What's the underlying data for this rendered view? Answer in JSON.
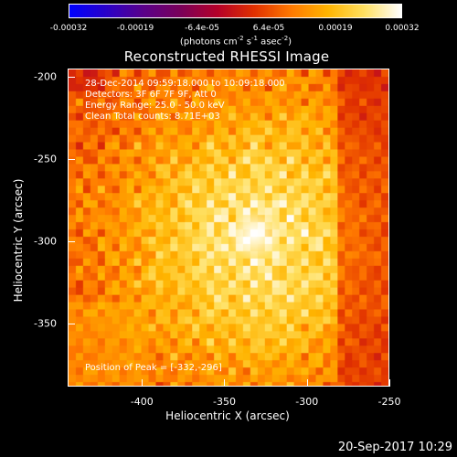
{
  "colorbar": {
    "ticks": [
      "-0.00032",
      "-0.00019",
      "-6.4e-05",
      "6.4e-05",
      "0.00019",
      "0.00032"
    ],
    "units_prefix": "(photons cm",
    "units_sup1": "-2",
    "units_mid": " s",
    "units_sup2": "-1",
    "units_mid2": " asec",
    "units_sup3": "-2",
    "units_suffix": ")",
    "colors": [
      "#0000ff",
      "#2a00c8",
      "#5a008a",
      "#7a005a",
      "#b4002a",
      "#e03000",
      "#ff7800",
      "#ffb400",
      "#ffe060",
      "#ffffff"
    ]
  },
  "plot": {
    "title": "Reconstructed RHESSI Image",
    "info_lines": [
      "28-Dec-2014 09:59:18.000 to 10:09:18.000",
      "Detectors: 3F 6F 7F 9F, Att 0",
      "Energy Range: 25.0 - 50.0 keV",
      "Clean     Total counts: 8.71E+03"
    ],
    "peak_text": "Position of Peak = [-332,-296]",
    "xlabel": "Heliocentric X (arcsec)",
    "ylabel": "Heliocentric Y (arcsec)",
    "xticks": [
      "-400",
      "-350",
      "-300",
      "-250"
    ],
    "yticks": [
      "-200",
      "-250",
      "-300",
      "-350"
    ],
    "xrange": [
      -445,
      -250
    ],
    "yrange": [
      -388,
      -195
    ],
    "peak": {
      "x": -332,
      "y": -296
    }
  },
  "timestamp": "20-Sep-2017 10:29"
}
